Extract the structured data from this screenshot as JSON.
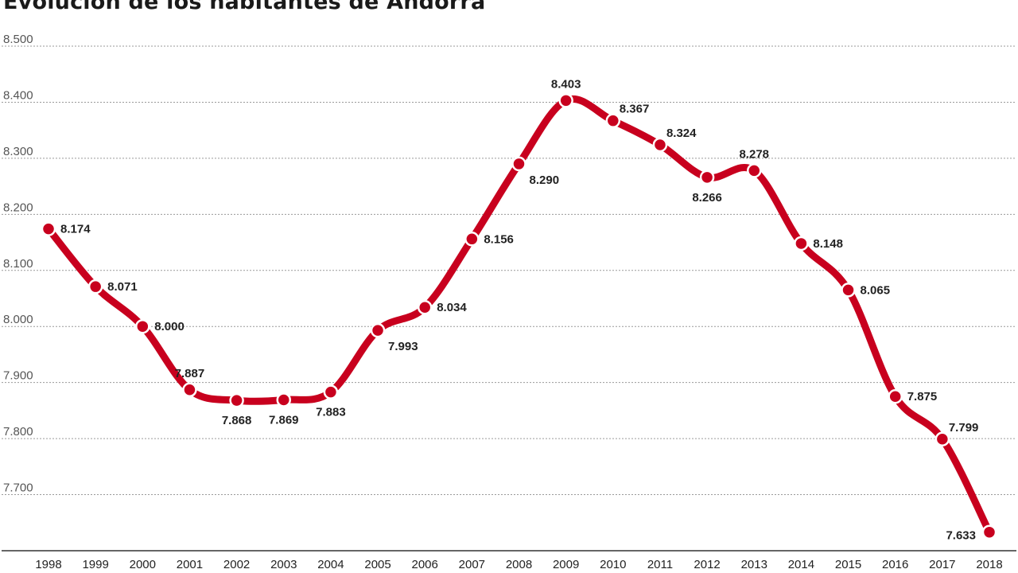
{
  "chart_data": {
    "type": "line",
    "title": "Evolución de los habitantes de Andorra",
    "xlabel": "",
    "ylabel": "",
    "ylim": [
      7600,
      8500
    ],
    "yticks": [
      7700,
      7800,
      7900,
      8000,
      8100,
      8200,
      8300,
      8400,
      8500
    ],
    "ytick_labels": [
      "7.700",
      "7.800",
      "7.900",
      "8.000",
      "8.100",
      "8.200",
      "8.300",
      "8.400",
      "8.500"
    ],
    "grid": true,
    "categories": [
      "1998",
      "1999",
      "2000",
      "2001",
      "2002",
      "2003",
      "2004",
      "2005",
      "2006",
      "2007",
      "2008",
      "2009",
      "2010",
      "2011",
      "2012",
      "2013",
      "2014",
      "2015",
      "2016",
      "2017",
      "2018"
    ],
    "values": [
      8174,
      8071,
      8000,
      7887,
      7868,
      7869,
      7883,
      7993,
      8034,
      8156,
      8290,
      8403,
      8367,
      8324,
      8266,
      8278,
      8148,
      8065,
      7875,
      7799,
      7633
    ],
    "data_labels": [
      "8.174",
      "8.071",
      "8.000",
      "7.887",
      "7.868",
      "7.869",
      "7.883",
      "7.993",
      "8.034",
      "8.156",
      "8.290",
      "8.403",
      "8.367",
      "8.324",
      "8.266",
      "8.278",
      "8.148",
      "8.065",
      "7.875",
      "7.799",
      "7.633"
    ],
    "label_positions": [
      "right",
      "right",
      "right",
      "above",
      "below",
      "below",
      "below",
      "below-right",
      "right",
      "right",
      "below-right",
      "above",
      "above-right",
      "above-right",
      "below",
      "above",
      "right",
      "right",
      "right",
      "above-right",
      "below-left"
    ],
    "series_color": "#c8001e"
  }
}
